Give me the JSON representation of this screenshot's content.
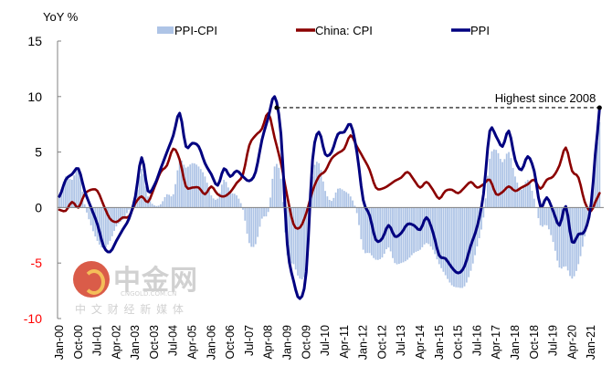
{
  "chart_data": {
    "type": "line",
    "title": "",
    "ylabel": "YoY %",
    "xlabel": "",
    "ylim": [
      -10,
      15
    ],
    "yticks": [
      15,
      10,
      5,
      0,
      -5,
      -10
    ],
    "negative_tick_color": "#ff0000",
    "grid": false,
    "legend_position": "top",
    "x_tick_labels": [
      "Jan-00",
      "Oct-00",
      "Jul-01",
      "Apr-02",
      "Jan-03",
      "Oct-03",
      "Jul-04",
      "Apr-05",
      "Jan-06",
      "Oct-06",
      "Jul-07",
      "Apr-08",
      "Jan-09",
      "Oct-09",
      "Jul-10",
      "Apr-11",
      "Jan-12",
      "Oct-12",
      "Jul-13",
      "Apr-14",
      "Jan-15",
      "Oct-15",
      "Jul-16",
      "Apr-17",
      "Jan-18",
      "Oct-18",
      "Jul-19",
      "Apr-20",
      "Jan-21"
    ],
    "x": [
      "2000-01",
      "2000-04",
      "2000-07",
      "2000-10",
      "2001-01",
      "2001-04",
      "2001-07",
      "2001-10",
      "2002-01",
      "2002-04",
      "2002-07",
      "2002-10",
      "2003-01",
      "2003-04",
      "2003-07",
      "2003-10",
      "2004-01",
      "2004-04",
      "2004-07",
      "2004-10",
      "2005-01",
      "2005-04",
      "2005-07",
      "2005-10",
      "2006-01",
      "2006-04",
      "2006-07",
      "2006-10",
      "2007-01",
      "2007-04",
      "2007-07",
      "2007-10",
      "2008-01",
      "2008-04",
      "2008-07",
      "2008-10",
      "2009-01",
      "2009-04",
      "2009-07",
      "2009-10",
      "2010-01",
      "2010-04",
      "2010-07",
      "2010-10",
      "2011-01",
      "2011-04",
      "2011-07",
      "2011-10",
      "2012-01",
      "2012-04",
      "2012-07",
      "2012-10",
      "2013-01",
      "2013-04",
      "2013-07",
      "2013-10",
      "2014-01",
      "2014-04",
      "2014-07",
      "2014-10",
      "2015-01",
      "2015-04",
      "2015-07",
      "2015-10",
      "2016-01",
      "2016-04",
      "2016-07",
      "2016-10",
      "2017-01",
      "2017-04",
      "2017-07",
      "2017-10",
      "2018-01",
      "2018-04",
      "2018-07",
      "2018-10",
      "2019-01",
      "2019-04",
      "2019-07",
      "2019-10",
      "2020-01",
      "2020-04",
      "2020-07",
      "2020-10",
      "2021-01",
      "2021-04",
      "2021-05"
    ],
    "series": [
      {
        "name": "PPI-CPI",
        "type": "bar",
        "color": "#aec4e6",
        "values": [
          1.2,
          2.8,
          2.5,
          3.5,
          0.3,
          -1.6,
          -3.0,
          -3.7,
          -3.0,
          -1.7,
          -1.1,
          -0.2,
          0.6,
          3.5,
          1.0,
          0.2,
          0.3,
          1.2,
          1.2,
          4.2,
          3.6,
          4.0,
          3.7,
          2.8,
          1.1,
          0.8,
          2.5,
          1.4,
          1.1,
          -0.2,
          -3.2,
          -3.3,
          -1.0,
          -0.4,
          3.7,
          2.6,
          -4.3,
          -5.1,
          -6.4,
          -5.3,
          2.8,
          4.0,
          1.5,
          0.6,
          1.7,
          1.5,
          1.0,
          -0.5,
          -3.8,
          -4.1,
          -4.7,
          -4.5,
          -3.6,
          -5.0,
          -5.0,
          -4.7,
          -4.1,
          -3.8,
          -3.2,
          -3.8,
          -5.1,
          -6.1,
          -7.0,
          -7.2,
          -7.1,
          -5.7,
          -3.5,
          -0.9,
          4.4,
          5.2,
          4.1,
          5.0,
          2.8,
          1.6,
          2.5,
          0.8,
          -1.6,
          -1.6,
          -3.1,
          -5.4,
          -5.3,
          -6.4,
          -5.1,
          -2.6,
          0.6,
          5.9,
          7.7
        ]
      },
      {
        "name": "China: CPI",
        "type": "line",
        "color": "#8b0000",
        "values": [
          -0.2,
          -0.3,
          0.5,
          0.0,
          1.2,
          1.6,
          1.5,
          0.2,
          -1.0,
          -1.3,
          -0.9,
          -0.8,
          0.4,
          1.0,
          0.5,
          1.8,
          3.2,
          3.8,
          5.3,
          4.3,
          1.9,
          1.8,
          1.8,
          1.2,
          1.9,
          1.2,
          1.0,
          1.4,
          2.2,
          3.0,
          5.6,
          6.5,
          7.1,
          8.5,
          6.3,
          4.0,
          1.0,
          -1.5,
          -1.8,
          -0.5,
          1.5,
          2.8,
          3.3,
          4.4,
          4.9,
          5.3,
          6.5,
          5.5,
          4.5,
          3.4,
          1.8,
          1.7,
          2.0,
          2.4,
          2.7,
          3.2,
          2.5,
          1.8,
          2.3,
          1.6,
          0.8,
          1.5,
          1.6,
          1.3,
          1.8,
          2.3,
          1.8,
          2.1,
          2.5,
          1.2,
          1.4,
          1.9,
          1.5,
          1.8,
          2.1,
          2.5,
          1.7,
          2.5,
          2.8,
          3.8,
          5.4,
          3.3,
          2.7,
          0.5,
          -0.3,
          0.9,
          1.3
        ]
      },
      {
        "name": "PPI",
        "type": "line",
        "color": "#000080",
        "values": [
          1.0,
          2.5,
          3.0,
          3.5,
          1.5,
          0.0,
          -1.5,
          -3.5,
          -4.0,
          -3.0,
          -2.0,
          -1.0,
          1.0,
          4.5,
          1.5,
          2.0,
          3.5,
          5.0,
          6.5,
          8.5,
          5.5,
          5.8,
          5.5,
          4.0,
          3.0,
          2.0,
          3.5,
          2.8,
          3.3,
          2.8,
          2.4,
          3.2,
          6.1,
          8.1,
          10.0,
          6.6,
          -3.3,
          -6.6,
          -8.2,
          -5.8,
          4.3,
          6.8,
          4.8,
          5.0,
          6.6,
          6.8,
          7.5,
          5.0,
          0.7,
          -0.7,
          -2.9,
          -2.8,
          -1.6,
          -2.6,
          -2.3,
          -1.5,
          -1.6,
          -2.0,
          -0.9,
          -2.2,
          -4.3,
          -4.6,
          -5.4,
          -5.9,
          -5.3,
          -3.4,
          -1.7,
          1.2,
          6.9,
          6.4,
          5.5,
          6.9,
          4.3,
          3.4,
          4.6,
          3.3,
          0.1,
          0.9,
          -0.3,
          -1.6,
          0.1,
          -3.1,
          -2.4,
          -2.1,
          0.3,
          6.8,
          9.0
        ]
      }
    ],
    "annotations": [
      {
        "text": "Highest since 2008",
        "type": "dashed-line",
        "y": 9.0,
        "from": "2008-08",
        "to": "2021-05"
      }
    ]
  },
  "watermark": {
    "brand": "中金网",
    "domain": "CNGOLD.COM.CN",
    "tagline": "中 文 财 经 新 媒 体"
  }
}
